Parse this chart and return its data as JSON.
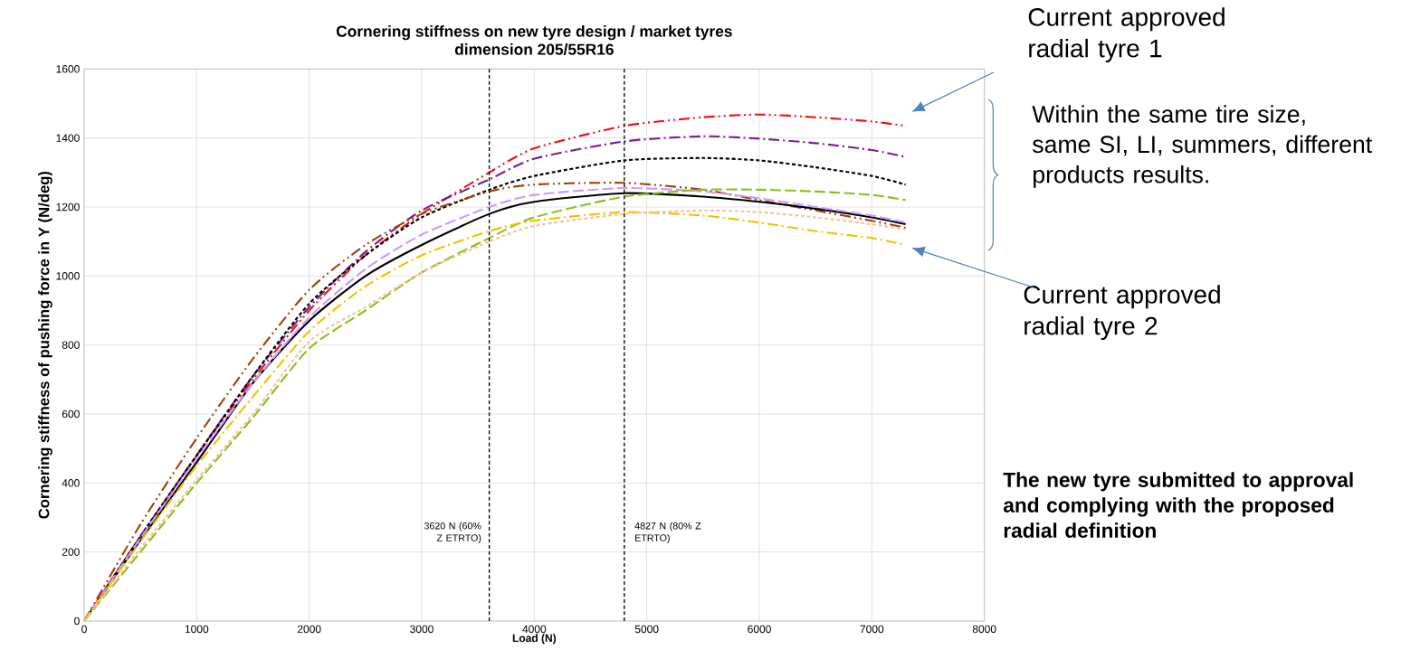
{
  "chart_data": {
    "type": "line",
    "title": "Cornering stiffness on new tyre design / market tyres",
    "subtitle": "dimension 205/55R16",
    "xlabel": "Load (N)",
    "ylabel": "Cornering stiffness of pushing force in Y (N/deg)",
    "x": [
      0,
      500,
      1000,
      1500,
      2000,
      2500,
      3000,
      3600,
      4000,
      4800,
      5500,
      6000,
      6500,
      7000,
      7300
    ],
    "series": [
      {
        "color": "#e8141a",
        "line_style": "dashdotdot",
        "values": [
          0,
          245,
          480,
          700,
          900,
          1060,
          1180,
          1300,
          1370,
          1435,
          1460,
          1468,
          1460,
          1448,
          1435
        ]
      },
      {
        "color": "#7b1f8a",
        "line_style": "dashdot",
        "values": [
          0,
          245,
          480,
          710,
          910,
          1070,
          1190,
          1280,
          1340,
          1390,
          1405,
          1398,
          1385,
          1365,
          1345
        ]
      },
      {
        "color": "#000000",
        "line_style": "shortdash",
        "values": [
          0,
          245,
          480,
          710,
          920,
          1060,
          1170,
          1250,
          1290,
          1335,
          1342,
          1335,
          1315,
          1290,
          1265
        ]
      },
      {
        "color": "#a0410d",
        "line_style": "dashdotdot",
        "values": [
          0,
          280,
          530,
          760,
          960,
          1090,
          1180,
          1245,
          1265,
          1270,
          1250,
          1220,
          1190,
          1160,
          1140
        ]
      },
      {
        "color": "#000000",
        "line_style": "solid",
        "values": [
          0,
          235,
          460,
          690,
          870,
          1000,
          1090,
          1180,
          1215,
          1240,
          1230,
          1215,
          1195,
          1170,
          1150
        ]
      },
      {
        "color": "#c79cff",
        "line_style": "dashed",
        "values": [
          0,
          240,
          470,
          690,
          880,
          1020,
          1120,
          1200,
          1235,
          1255,
          1245,
          1225,
          1200,
          1175,
          1155
        ]
      },
      {
        "color": "#8cc021",
        "line_style": "dashed",
        "values": [
          0,
          200,
          400,
          590,
          790,
          900,
          1010,
          1110,
          1170,
          1230,
          1250,
          1250,
          1245,
          1235,
          1220
        ]
      },
      {
        "color": "#f5c000",
        "line_style": "dashdot",
        "values": [
          0,
          230,
          450,
          650,
          840,
          970,
          1060,
          1130,
          1160,
          1185,
          1175,
          1155,
          1130,
          1110,
          1090
        ]
      },
      {
        "color": "#f7c29a",
        "line_style": "shortdash",
        "values": [
          0,
          210,
          410,
          600,
          810,
          910,
          1010,
          1100,
          1145,
          1180,
          1190,
          1185,
          1170,
          1150,
          1135
        ]
      }
    ],
    "xlim": [
      0,
      8000
    ],
    "ylim": [
      0,
      1600
    ],
    "xticks": [
      0,
      1000,
      2000,
      3000,
      4000,
      5000,
      6000,
      7000,
      8000
    ],
    "yticks": [
      0,
      200,
      400,
      600,
      800,
      1000,
      1200,
      1400,
      1600
    ],
    "grid": true,
    "ref_lines": [
      {
        "axis": "x",
        "value": 3600,
        "label": "3620 N (60% Z ETRTO)",
        "color": "#000000",
        "line_style": "shortdash"
      },
      {
        "axis": "x",
        "value": 4800,
        "label": "4827 N (80% Z ETRTO)",
        "color": "#000000",
        "line_style": "shortdash"
      }
    ],
    "annotations": [
      "Current approved radial tyre 1",
      "Within the same tire size, same SI, LI, summers, different products results.",
      "Current approved radial tyre 2",
      "**The new tyre submitted to approval and complying with the proposed radial definition**"
    ]
  }
}
